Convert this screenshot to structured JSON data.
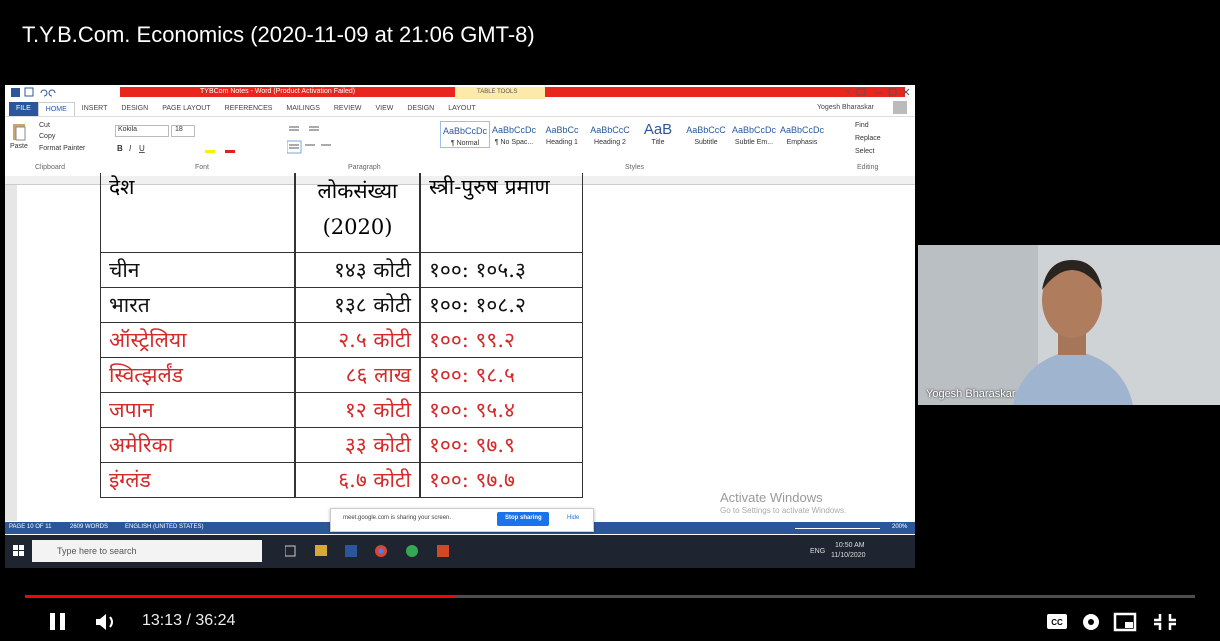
{
  "title": "T.Y.B.Com. Economics (2020-11-09 at 21:06 GMT-8)",
  "word": {
    "title_bar": "TYBCom Notes - Word (Product Activation Failed)",
    "table_tools": "TABLE TOOLS",
    "tabs": [
      "FILE",
      "HOME",
      "INSERT",
      "DESIGN",
      "PAGE LAYOUT",
      "REFERENCES",
      "MAILINGS",
      "REVIEW",
      "VIEW",
      "DESIGN",
      "LAYOUT"
    ],
    "user": "Yogesh Bharaskar",
    "clipboard": {
      "paste": "Paste",
      "cut": "Cut",
      "copy": "Copy",
      "format_painter": "Format Painter",
      "group": "Clipboard"
    },
    "font": {
      "name": "Kokila",
      "size": "18",
      "group": "Font"
    },
    "paragraph": {
      "group": "Paragraph"
    },
    "styles": {
      "previews": [
        "AaBbCcDc",
        "AaBbCcDc",
        "AaBbCc",
        "AaBbCcC",
        "AaB",
        "AaBbCcC",
        "AaBbCcDc",
        "AaBbCcDc"
      ],
      "names": [
        "¶ Normal",
        "¶ No Spac...",
        "Heading 1",
        "Heading 2",
        "Title",
        "Subtitle",
        "Subtle Em...",
        "Emphasis"
      ],
      "group": "Styles"
    },
    "editing": {
      "find": "Find",
      "replace": "Replace",
      "select": "Select",
      "group": "Editing"
    }
  },
  "table": {
    "header": [
      "देश",
      "लोकसंख्या",
      "(2020)",
      "स्त्री-पुरुष प्रमाण"
    ],
    "rows": [
      [
        "चीन",
        "१४३ कोटी",
        "१००: १०५.३"
      ],
      [
        "भारत",
        "१३८ कोटी",
        "१००: १०८.२"
      ],
      [
        "ऑस्ट्रेलिया",
        "२.५ कोटी",
        "१००: ९९.२"
      ],
      [
        "स्वित्झर्लंड",
        "८६ लाख",
        "१००: ९८.५"
      ],
      [
        "जपान",
        "१२ कोटी",
        "१००: ९५.४"
      ],
      [
        "अमेरिका",
        "३३ कोटी",
        "१००: ९७.९"
      ],
      [
        "इंग्लंड",
        "६.७ कोटी",
        "१००: ९७.७"
      ]
    ],
    "row_colors": [
      "#111111",
      "#111111",
      "#d42a2a",
      "#d42a2a",
      "#d42a2a",
      "#d42a2a",
      "#d42a2a"
    ]
  },
  "watermark": {
    "line1": "Activate Windows",
    "line2": "Go to Settings to activate Windows."
  },
  "status": {
    "page": "PAGE 10 OF 11",
    "words": "2609 WORDS",
    "language": "ENGLISH (UNITED STATES)",
    "zoom": "200%"
  },
  "share_bar": {
    "message": "meet.google.com is sharing your screen.",
    "stop": "Stop sharing",
    "hide": "Hide"
  },
  "taskbar": {
    "search": "Type here to search",
    "lang": "ENG",
    "time": "10:50 AM",
    "date": "11/10/2020"
  },
  "participant": {
    "name": "Yogesh Bharaskar"
  },
  "player": {
    "time": "13:13 / 36:24"
  }
}
